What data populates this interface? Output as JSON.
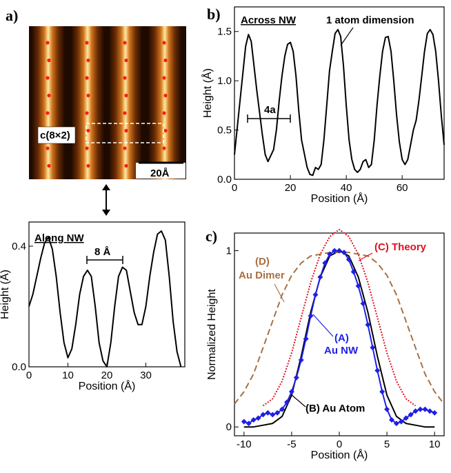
{
  "panels": {
    "a_label": "a)",
    "b_label": "b)",
    "c_label": "c)"
  },
  "stm_image": {
    "superstructure_label": "c(8×2)",
    "scale_bar": "20Å",
    "colors": {
      "dark": "#1e0a00",
      "mid": "#b0520e",
      "bright": "#ffe8a0",
      "atom_dot": "#ff1a1a"
    }
  },
  "chart_data": [
    {
      "id": "across",
      "type": "line",
      "title": "",
      "annotations": [
        "Across NW",
        "1 atom dimension",
        "4a"
      ],
      "xlabel": "Position (Å)",
      "ylabel": "Height (Å)",
      "xlim": [
        0,
        75
      ],
      "ylim": [
        0,
        1.75
      ],
      "xticks": [
        0,
        20,
        40,
        60
      ],
      "yticks": [
        0.0,
        0.5,
        1.0,
        1.5
      ],
      "ytick_labels": [
        "0.0",
        "0.5",
        "1.0",
        "1.5"
      ],
      "series": [
        {
          "color": "#000000",
          "dash": "",
          "x": [
            0,
            2,
            4,
            5,
            6,
            8,
            10,
            11,
            12,
            14,
            15,
            16,
            17,
            18,
            19,
            20,
            21,
            22,
            23,
            24,
            26,
            27,
            28,
            29,
            30,
            31,
            32,
            33,
            34,
            35,
            36,
            37,
            38,
            39,
            40,
            41,
            42,
            43,
            44,
            45,
            46,
            47,
            48,
            49,
            50,
            51,
            52,
            53,
            54,
            55,
            56,
            57,
            58,
            59,
            60,
            61,
            62,
            63,
            64,
            65,
            66,
            67,
            68,
            69,
            70,
            71,
            72,
            73,
            74,
            75
          ],
          "y": [
            0.25,
            0.8,
            1.35,
            1.47,
            1.4,
            0.9,
            0.45,
            0.25,
            0.18,
            0.3,
            0.5,
            0.8,
            1.05,
            1.25,
            1.37,
            1.39,
            1.3,
            1.05,
            0.7,
            0.4,
            0.12,
            0.05,
            0.04,
            0.12,
            0.1,
            0.15,
            0.4,
            0.75,
            1.1,
            1.3,
            1.48,
            1.52,
            1.45,
            1.15,
            0.75,
            0.4,
            0.2,
            0.1,
            0.07,
            0.1,
            0.18,
            0.2,
            0.12,
            0.15,
            0.4,
            0.75,
            1.05,
            1.3,
            1.44,
            1.45,
            1.3,
            1.0,
            0.65,
            0.38,
            0.2,
            0.15,
            0.2,
            0.35,
            0.5,
            0.6,
            0.8,
            1.05,
            1.3,
            1.48,
            1.52,
            1.47,
            1.3,
            1.0,
            0.65,
            0.35
          ]
        }
      ]
    },
    {
      "id": "along",
      "type": "line",
      "title": "",
      "annotations": [
        "Along NW",
        "8 Å"
      ],
      "xlabel": "Position (Å)",
      "ylabel": "Height (Å)",
      "xlim": [
        0,
        40
      ],
      "ylim": [
        0,
        0.48
      ],
      "xticks": [
        0,
        10,
        20,
        30
      ],
      "yticks": [
        0.0,
        0.4
      ],
      "ytick_labels": [
        "0.0",
        "0.4"
      ],
      "series": [
        {
          "color": "#000000",
          "dash": "",
          "x": [
            0,
            1,
            2,
            3,
            4,
            5,
            6,
            7,
            8,
            9,
            10,
            11,
            12,
            13,
            14,
            15,
            16,
            17,
            18,
            19,
            20,
            21,
            22,
            23,
            24,
            25,
            26,
            27,
            28,
            29,
            30,
            31,
            32,
            33,
            34,
            35,
            36,
            37,
            38,
            39
          ],
          "y": [
            0.2,
            0.24,
            0.3,
            0.36,
            0.41,
            0.43,
            0.39,
            0.3,
            0.18,
            0.08,
            0.03,
            0.06,
            0.14,
            0.24,
            0.3,
            0.32,
            0.3,
            0.2,
            0.08,
            0.02,
            0.0,
            0.08,
            0.2,
            0.3,
            0.33,
            0.32,
            0.25,
            0.18,
            0.14,
            0.14,
            0.2,
            0.3,
            0.38,
            0.44,
            0.45,
            0.42,
            0.3,
            0.15,
            0.05,
            0.0
          ]
        }
      ]
    },
    {
      "id": "normalized",
      "type": "line",
      "title": "",
      "xlabel": "Position (Å)",
      "ylabel": "Normalized Height",
      "xlim": [
        -11,
        11
      ],
      "ylim": [
        -0.05,
        1.1
      ],
      "xticks": [
        -10,
        -5,
        0,
        5,
        10
      ],
      "yticks": [
        0,
        1
      ],
      "ytick_labels": [
        "0",
        "1"
      ],
      "annotations": [
        "(C) Theory",
        "(D)",
        "Au Dimer",
        "(A)",
        "Au NW",
        "(B) Au Atom"
      ],
      "series": [
        {
          "name": "(B) Au Atom",
          "color": "#000000",
          "dash": "",
          "x": [
            -10,
            -9,
            -8,
            -7,
            -6,
            -5,
            -4,
            -3,
            -2,
            -1,
            0,
            1,
            2,
            3,
            4,
            5,
            6,
            7,
            8,
            9,
            10
          ],
          "y": [
            0.0,
            0.0,
            0.01,
            0.02,
            0.06,
            0.18,
            0.4,
            0.65,
            0.85,
            0.97,
            1.0,
            0.97,
            0.85,
            0.65,
            0.4,
            0.18,
            0.06,
            0.02,
            0.01,
            0.0,
            0.0
          ]
        },
        {
          "name": "(C) Theory",
          "color": "#e0101e",
          "dash": "2,2",
          "x": [
            -8,
            -7,
            -6,
            -5,
            -4,
            -3,
            -2,
            -1,
            0,
            1,
            2,
            3,
            4,
            5,
            6,
            7,
            8
          ],
          "y": [
            0.12,
            0.16,
            0.26,
            0.42,
            0.62,
            0.82,
            0.98,
            1.08,
            1.12,
            1.08,
            0.98,
            0.82,
            0.62,
            0.42,
            0.26,
            0.16,
            0.12
          ]
        },
        {
          "name": "Au Dimer",
          "color": "#a87040",
          "dash": "9,5",
          "x": [
            -11,
            -10,
            -9,
            -8,
            -7,
            -6,
            -5,
            -4,
            -3,
            -2,
            -1,
            0,
            1,
            2,
            3,
            4,
            5,
            6,
            7,
            8,
            9,
            10,
            11
          ],
          "y": [
            0.13,
            0.2,
            0.3,
            0.45,
            0.6,
            0.75,
            0.86,
            0.93,
            0.97,
            0.98,
            0.99,
            0.99,
            0.99,
            0.98,
            0.97,
            0.93,
            0.86,
            0.75,
            0.6,
            0.45,
            0.3,
            0.2,
            0.13
          ]
        },
        {
          "name": "Au NW",
          "color": "#1f1fe6",
          "dash": "",
          "markers": true,
          "x": [
            -10,
            -9.5,
            -9,
            -8.5,
            -8,
            -7.5,
            -7,
            -6.5,
            -6,
            -5.5,
            -5,
            -4.5,
            -4,
            -3.5,
            -3,
            -2.5,
            -2,
            -1.5,
            -1,
            -0.5,
            0,
            0.5,
            1,
            1.5,
            2,
            2.5,
            3,
            3.5,
            4,
            4.5,
            5,
            5.5,
            6,
            6.5,
            7,
            7.5,
            8,
            8.5,
            9,
            9.5,
            10
          ],
          "y": [
            0.03,
            0.02,
            0.04,
            0.05,
            0.07,
            0.08,
            0.07,
            0.08,
            0.1,
            0.14,
            0.2,
            0.28,
            0.38,
            0.5,
            0.63,
            0.75,
            0.85,
            0.93,
            0.98,
            1.0,
            1.0,
            0.99,
            0.95,
            0.88,
            0.8,
            0.7,
            0.58,
            0.45,
            0.32,
            0.2,
            0.1,
            0.04,
            0.02,
            0.03,
            0.05,
            0.07,
            0.09,
            0.1,
            0.1,
            0.09,
            0.08
          ]
        }
      ]
    }
  ]
}
